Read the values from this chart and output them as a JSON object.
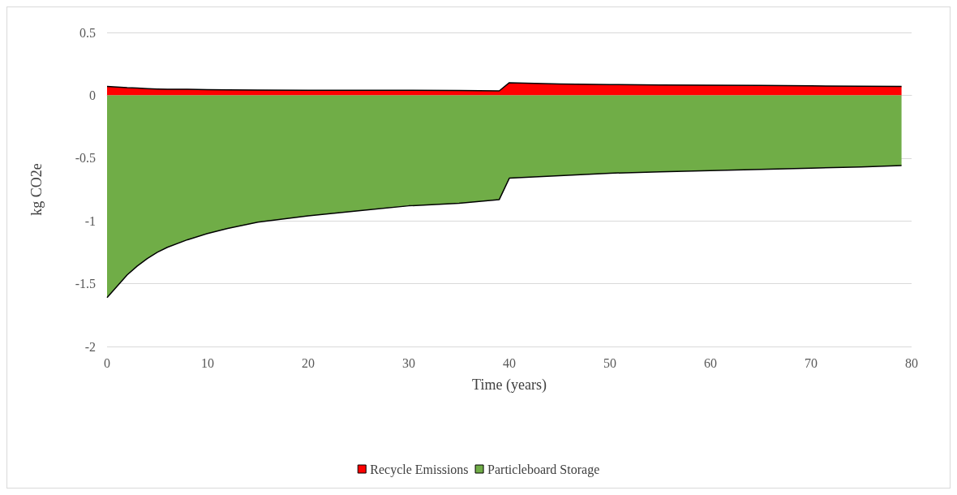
{
  "chart_data": {
    "type": "area",
    "xlabel": "Time (years)",
    "ylabel": "kg CO2e",
    "x": [
      0,
      1,
      2,
      3,
      4,
      5,
      6,
      8,
      10,
      12,
      15,
      20,
      25,
      30,
      35,
      39,
      40,
      45,
      50,
      55,
      60,
      65,
      70,
      75,
      79
    ],
    "series": [
      {
        "name": "Recycle Emissions",
        "color": "#ff0000",
        "values": [
          0.07,
          0.065,
          0.06,
          0.057,
          0.053,
          0.05,
          0.048,
          0.047,
          0.045,
          0.043,
          0.042,
          0.04,
          0.04,
          0.04,
          0.038,
          0.035,
          0.1,
          0.09,
          0.085,
          0.082,
          0.08,
          0.078,
          0.075,
          0.072,
          0.07
        ]
      },
      {
        "name": "Particleboard Storage",
        "color": "#70ad47",
        "values": [
          -1.61,
          -1.52,
          -1.43,
          -1.36,
          -1.3,
          -1.25,
          -1.21,
          -1.15,
          -1.1,
          -1.06,
          -1.01,
          -0.96,
          -0.92,
          -0.88,
          -0.86,
          -0.83,
          -0.66,
          -0.64,
          -0.62,
          -0.61,
          -0.6,
          -0.59,
          -0.58,
          -0.57,
          -0.56
        ]
      }
    ],
    "xlim": [
      0,
      80
    ],
    "xticks": [
      0,
      10,
      20,
      30,
      40,
      50,
      60,
      70,
      80
    ],
    "ylim": [
      -2,
      0.5
    ],
    "yticks": [
      -2,
      -1.5,
      -1,
      -0.5,
      0,
      0.5
    ],
    "grid": "y",
    "legend": "bottom"
  }
}
